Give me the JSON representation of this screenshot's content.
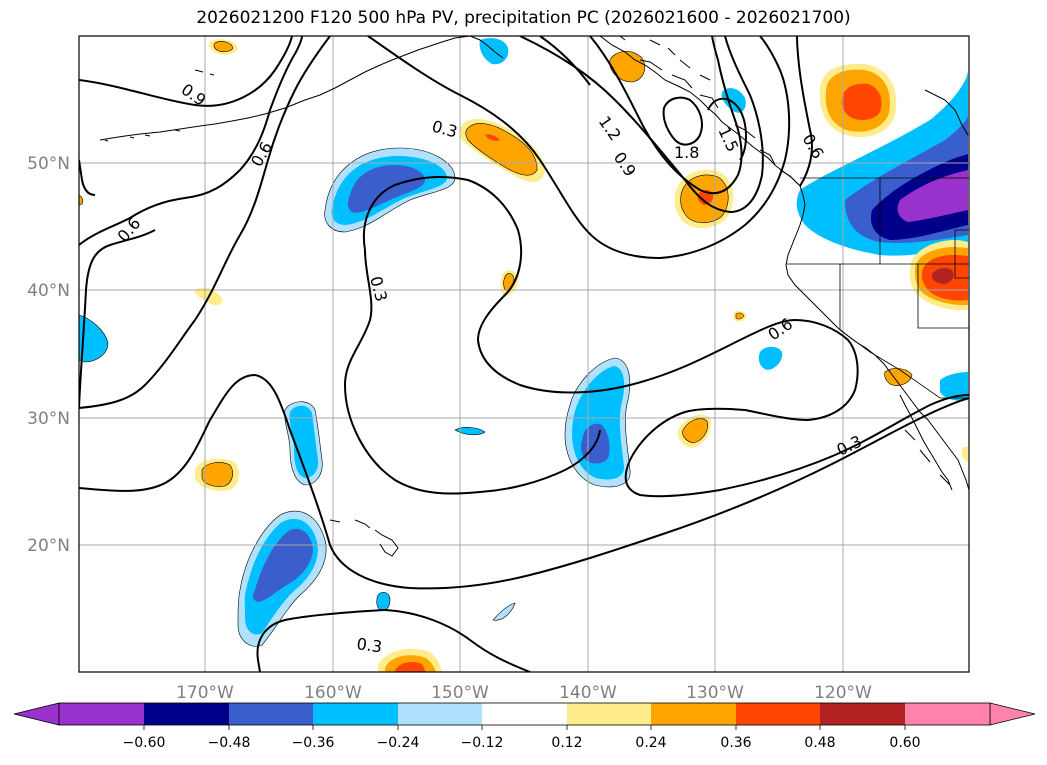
{
  "title": "2026021200 F120 500 hPa PV, precipitation PC (2026021600 - 2026021700)",
  "map": {
    "lon_labels": [
      "170°W",
      "160°W",
      "150°W",
      "140°W",
      "130°W",
      "120°W"
    ],
    "lat_labels": [
      "50°N",
      "40°N",
      "30°N",
      "20°N"
    ],
    "contour_labels": [
      "0.9",
      "0.6",
      "0.6",
      "0.3",
      "0.3",
      "1.2",
      "0.9",
      "1.8",
      "1.5",
      "0.6",
      "0.6",
      "0.3",
      "0.3"
    ]
  },
  "colorbar": {
    "colors": [
      "#9932cc",
      "#00008b",
      "#3a5fcd",
      "#00bfff",
      "#b0e2ff",
      "#ffffff",
      "#ffec8b",
      "#ffa500",
      "#ff4500",
      "#b22222",
      "#ff82ab"
    ],
    "tick_labels": [
      "−0.60",
      "−0.48",
      "−0.36",
      "−0.24",
      "−0.12",
      "0.12",
      "0.24",
      "0.36",
      "0.48",
      "0.60"
    ]
  },
  "grid_color": "#a9a9a9"
}
